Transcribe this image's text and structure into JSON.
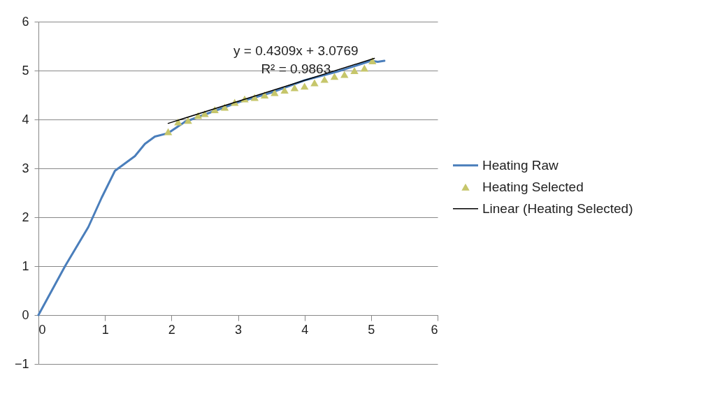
{
  "chart_data": {
    "type": "line",
    "xlim": [
      0,
      6
    ],
    "ylim": [
      -1,
      6
    ],
    "xticks": [
      0,
      1,
      2,
      3,
      4,
      5,
      6
    ],
    "yticks": [
      -1,
      0,
      1,
      2,
      3,
      4,
      5,
      6
    ],
    "grid": "y",
    "legend": "right",
    "series": [
      {
        "name": "Heating Raw",
        "type": "line",
        "marker": "none",
        "color": "#4a7ebb",
        "x": [
          0,
          0.4,
          0.75,
          0.95,
          1.15,
          1.3,
          1.45,
          1.6,
          1.75,
          1.95,
          2.2,
          2.6,
          3.0,
          3.5,
          4.0,
          4.5,
          5.0,
          5.1,
          5.2
        ],
        "values": [
          0,
          1.0,
          1.8,
          2.4,
          2.95,
          3.1,
          3.25,
          3.5,
          3.65,
          3.72,
          3.95,
          4.15,
          4.35,
          4.55,
          4.8,
          4.98,
          5.2,
          5.18,
          5.2
        ]
      },
      {
        "name": "Heating Selected",
        "type": "scatter",
        "marker": "triangle",
        "color": "#c6c66b",
        "x": [
          1.95,
          2.1,
          2.25,
          2.4,
          2.5,
          2.65,
          2.8,
          2.95,
          3.1,
          3.25,
          3.4,
          3.55,
          3.7,
          3.85,
          4.0,
          4.15,
          4.3,
          4.45,
          4.6,
          4.75,
          4.9,
          5.02
        ],
        "values": [
          3.75,
          3.95,
          3.98,
          4.08,
          4.12,
          4.2,
          4.25,
          4.35,
          4.42,
          4.45,
          4.5,
          4.55,
          4.6,
          4.65,
          4.68,
          4.75,
          4.82,
          4.88,
          4.92,
          5.0,
          5.05,
          5.2
        ]
      },
      {
        "name": "Linear (Heating Selected)",
        "type": "line",
        "marker": "none",
        "color": "#000000",
        "x": [
          1.95,
          5.05
        ],
        "values": [
          3.92,
          5.25
        ]
      }
    ],
    "annotations": [
      "y = 0.4309x + 3.0769",
      "R² = 0.9863"
    ]
  }
}
